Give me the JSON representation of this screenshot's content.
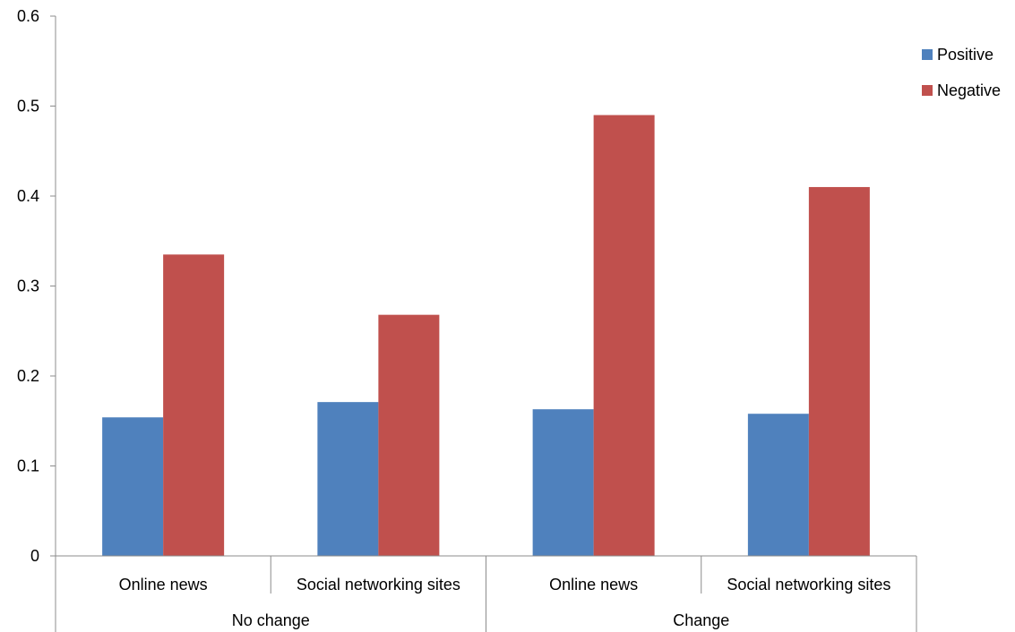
{
  "chart_data": {
    "type": "bar",
    "groups": [
      {
        "label": "No change",
        "categories": [
          "Online news",
          "Social networking sites"
        ]
      },
      {
        "label": "Change",
        "categories": [
          "Online news",
          "Social networking sites"
        ]
      }
    ],
    "categories": [
      "Online news",
      "Social networking sites",
      "Online news",
      "Social networking sites"
    ],
    "series": [
      {
        "name": "Positive",
        "color": "#4f81bd",
        "values": [
          0.154,
          0.171,
          0.163,
          0.158
        ]
      },
      {
        "name": "Negative",
        "color": "#c0504d",
        "values": [
          0.335,
          0.268,
          0.49,
          0.41
        ]
      }
    ],
    "yticks": [
      "0",
      "0.1",
      "0.2",
      "0.3",
      "0.4",
      "0.5",
      "0.6"
    ],
    "ylim": [
      0,
      0.6
    ],
    "legend_position": "top-right",
    "grid": false
  }
}
